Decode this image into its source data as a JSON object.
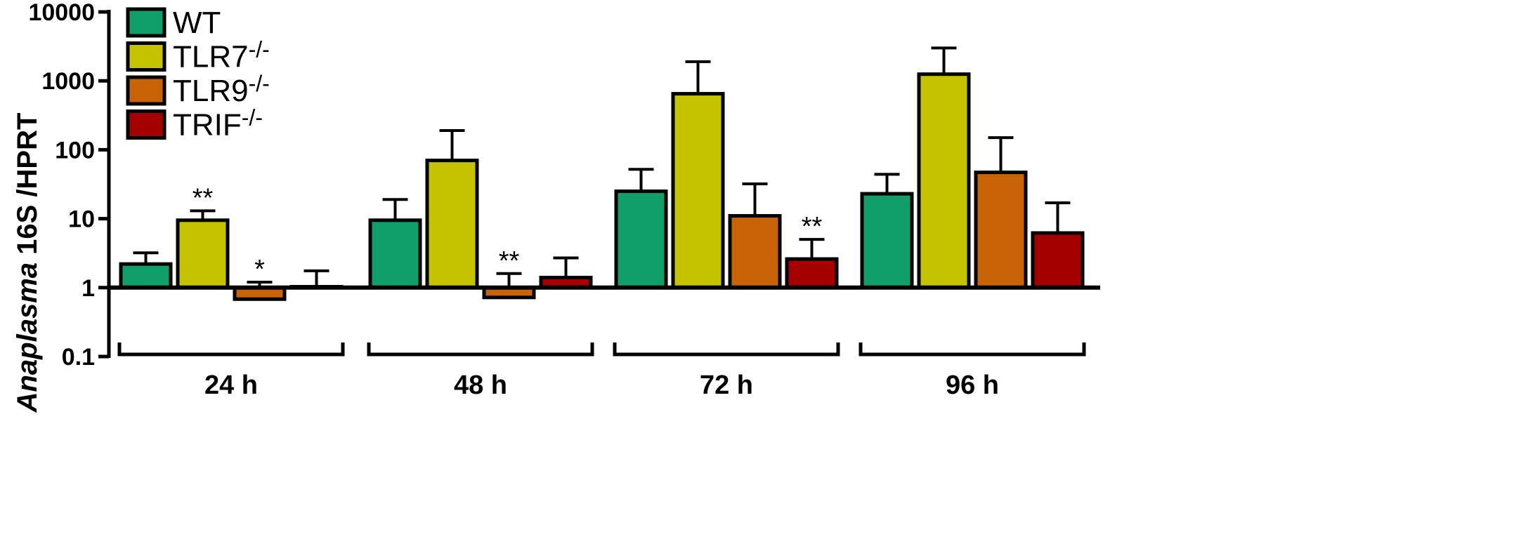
{
  "chart_data": {
    "type": "bar",
    "yscale": "log",
    "ylim": [
      0.1,
      10000
    ],
    "ylabel": {
      "italic": "Anaplasma",
      "rest": " 16S /HPRT"
    },
    "yticks": [
      {
        "value": 0.1,
        "label": "0.1"
      },
      {
        "value": 1,
        "label": "1"
      },
      {
        "value": 10,
        "label": "10"
      },
      {
        "value": 100,
        "label": "100"
      },
      {
        "value": 1000,
        "label": "1000"
      },
      {
        "value": 10000,
        "label": "10000"
      }
    ],
    "baseline": 1,
    "categories": [
      "24 h",
      "48 h",
      "72 h",
      "96 h"
    ],
    "series": [
      {
        "name": "WT",
        "base": "WT",
        "sup": "",
        "color": "#109e6b",
        "values": [
          2.2,
          9.5,
          25,
          23
        ],
        "errors": [
          3.2,
          19,
          52,
          44
        ],
        "sig": [
          "",
          "",
          "",
          ""
        ]
      },
      {
        "name": "TLR7-/-",
        "base": "TLR7",
        "sup": "-/-",
        "color": "#c5c200",
        "values": [
          9.5,
          70,
          650,
          1250
        ],
        "errors": [
          13,
          190,
          1900,
          3000
        ],
        "sig": [
          "**",
          "",
          "",
          ""
        ]
      },
      {
        "name": "TLR9-/-",
        "base": "TLR9",
        "sup": "-/-",
        "color": "#c96307",
        "values": [
          0.68,
          0.72,
          11,
          47
        ],
        "errors": [
          1.2,
          1.6,
          32,
          150
        ],
        "sig": [
          "*",
          "**",
          "",
          ""
        ]
      },
      {
        "name": "TRIF-/-",
        "base": "TRIF",
        "sup": "-/-",
        "color": "#a50000",
        "values": [
          1.03,
          1.4,
          2.6,
          6.2
        ],
        "errors": [
          1.75,
          2.7,
          5.0,
          17
        ],
        "sig": [
          "",
          "",
          "**",
          ""
        ]
      }
    ],
    "legend": "top-left",
    "grid": false
  }
}
